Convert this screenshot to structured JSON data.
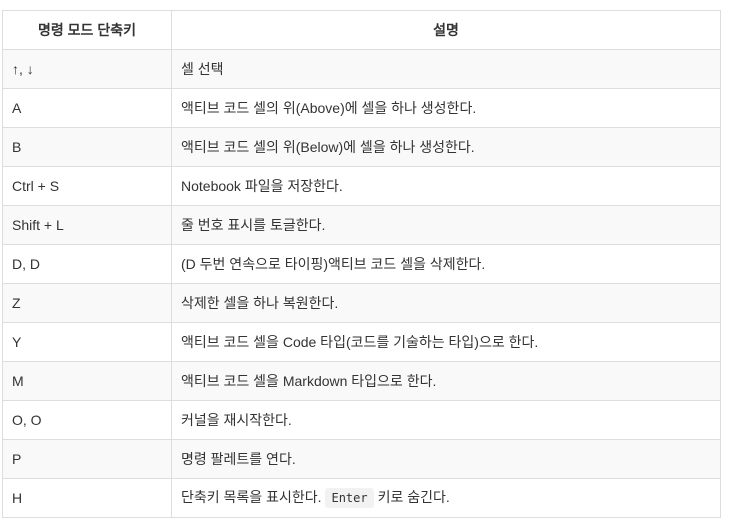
{
  "table": {
    "headers": [
      "명령 모드 단축키",
      "설명"
    ],
    "rows": [
      {
        "key": "↑, ↓",
        "desc": "셀 선택"
      },
      {
        "key": "A",
        "desc": "액티브 코드 셀의 위(Above)에 셀을 하나 생성한다."
      },
      {
        "key": "B",
        "desc": "액티브 코드 셀의 위(Below)에 셀을 하나 생성한다."
      },
      {
        "key": "Ctrl + S",
        "desc": "Notebook 파일을 저장한다."
      },
      {
        "key": "Shift + L",
        "desc": "줄 번호 표시를 토글한다."
      },
      {
        "key": "D, D",
        "desc": "(D 두번 연속으로 타이핑)액티브 코드 셀을 삭제한다."
      },
      {
        "key": "Z",
        "desc": "삭제한 셀을 하나 복원한다."
      },
      {
        "key": "Y",
        "desc": "액티브 코드 셀을 Code 타입(코드를 기술하는 타입)으로 한다."
      },
      {
        "key": "M",
        "desc": "액티브 코드 셀을 Markdown 타입으로 한다."
      },
      {
        "key": "O, O",
        "desc": "커널을 재시작한다."
      },
      {
        "key": "P",
        "desc": "명령 팔레트를 연다."
      },
      {
        "key": "H",
        "desc_before": "단축키 목록을 표시한다.",
        "desc_code": "Enter",
        "desc_after": "키로 숨긴다."
      }
    ]
  }
}
